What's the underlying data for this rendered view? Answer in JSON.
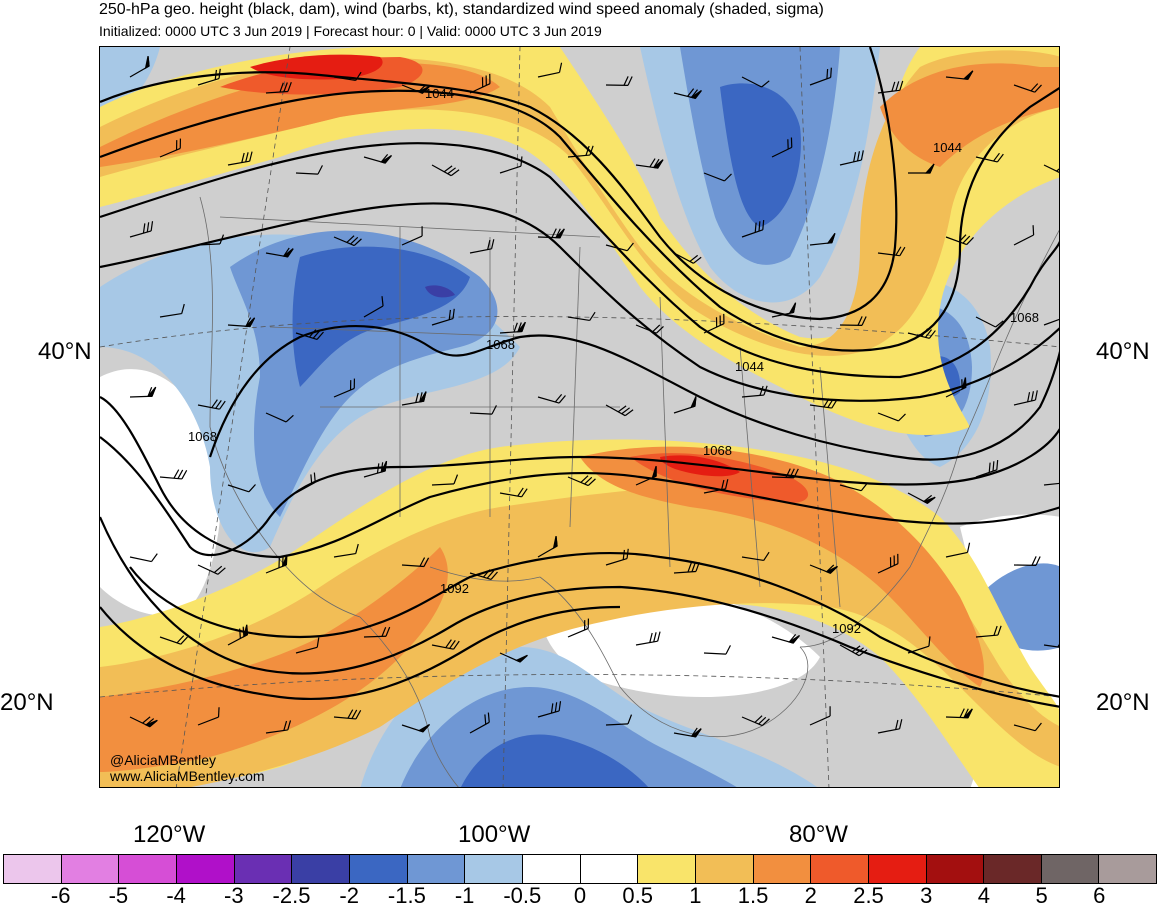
{
  "header": {
    "title": "250-hPa geo. height (black, dam), wind (barbs, kt), standardized wind speed anomaly (shaded, sigma)",
    "subtitle": "Initialized: 0000 UTC 3 Jun 2019 | Forecast hour: 0 | Valid: 0000 UTC 3 Jun 2019"
  },
  "map": {
    "lat_labels": [
      "40°N",
      "20°N"
    ],
    "lon_labels": [
      "120°W",
      "100°W",
      "80°W"
    ],
    "contour_labels": [
      "1044",
      "1044",
      "1044",
      "1068",
      "1068",
      "1068",
      "1068",
      "1092",
      "1092"
    ],
    "credit": {
      "handle": "@AliciaMBentley",
      "website": "www.AliciaMBentley.com"
    }
  },
  "colorbar": {
    "colors": [
      "#ecc6ec",
      "#e27fe2",
      "#d64ed6",
      "#b010c9",
      "#6a2fb3",
      "#3a3fa5",
      "#3b67c2",
      "#6f97d4",
      "#a7c8e6",
      "#ffffff",
      "#ffffff",
      "#f9e46a",
      "#f2be56",
      "#f28f3f",
      "#ef5a2b",
      "#e51d12",
      "#a30f0f",
      "#6a2828",
      "#6f6565",
      "#a89b9b"
    ],
    "tick_labels": [
      "-6",
      "-5",
      "-4",
      "-3",
      "-2.5",
      "-2",
      "-1.5",
      "-1",
      "-0.5",
      "0",
      "0.5",
      "1",
      "1.5",
      "2",
      "2.5",
      "3",
      "4",
      "5",
      "6"
    ]
  }
}
